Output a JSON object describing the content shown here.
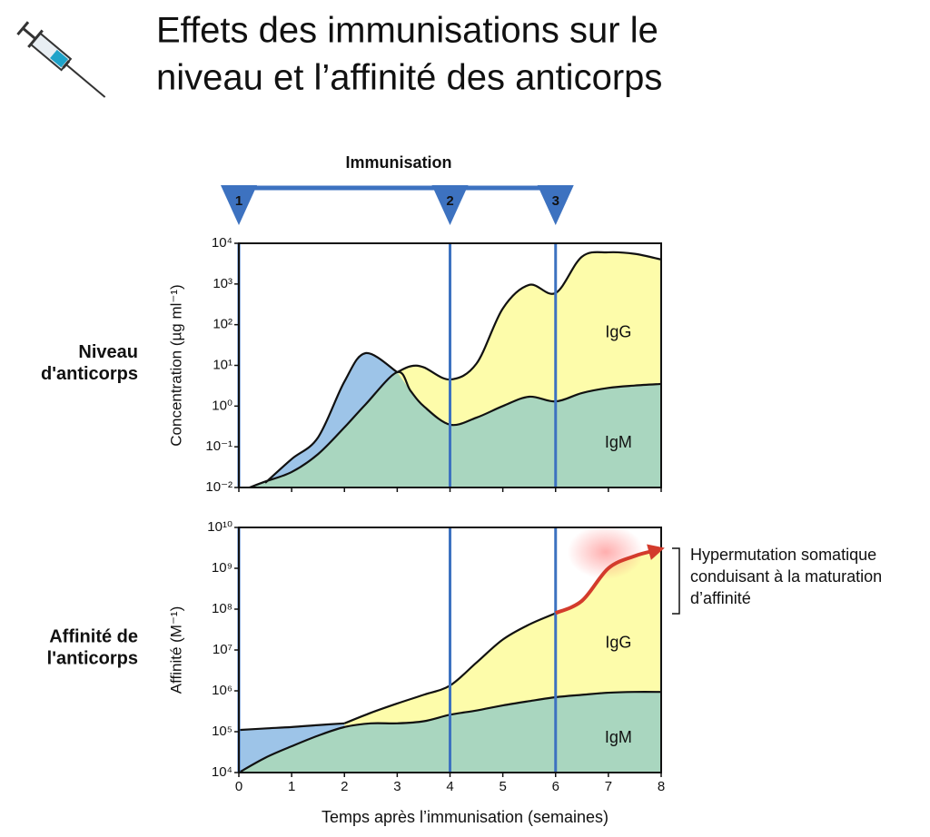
{
  "title": [
    "Effets des immunisations sur le",
    "niveau et l’affinité des anticorps"
  ],
  "immunisation": {
    "label": "Immunisation",
    "color": "#3d72c0",
    "doses": [
      {
        "x": 0,
        "label": "1"
      },
      {
        "x": 4,
        "label": "2"
      },
      {
        "x": 6,
        "label": "3"
      }
    ]
  },
  "chart_data": [
    {
      "type": "area",
      "row_label": [
        "Niveau",
        "d'anticorps"
      ],
      "ylabel": "Concentration (µg ml⁻¹)",
      "log_y": true,
      "xlim": [
        0,
        8
      ],
      "xticks": [
        0,
        1,
        2,
        3,
        4,
        5,
        6,
        7,
        8
      ],
      "xtick_labels": false,
      "ylim": [
        0.01,
        10000
      ],
      "yticks": [
        {
          "value": 0.01,
          "label": "10⁻²"
        },
        {
          "value": 0.1,
          "label": "10⁻¹"
        },
        {
          "value": 1,
          "label": "10⁰"
        },
        {
          "value": 10,
          "label": "10¹"
        },
        {
          "value": 100,
          "label": "10²"
        },
        {
          "value": 1000,
          "label": "10³"
        },
        {
          "value": 10000,
          "label": "10⁴"
        }
      ],
      "x": [
        0.2,
        0.5,
        1,
        1.5,
        2,
        2.4,
        3,
        3.25,
        3.5,
        4,
        4.5,
        5,
        5.5,
        6,
        6.5,
        7,
        7.5,
        8
      ],
      "series": [
        {
          "name": "IgM",
          "color": "#a9d6bf",
          "values": [
            0.01,
            0.014,
            0.024,
            0.066,
            0.3,
            1.1,
            6.8,
            2.4,
            1,
            0.35,
            0.52,
            1,
            1.7,
            1.3,
            2.1,
            2.8,
            3.2,
            3.5
          ]
        },
        {
          "name": "IgG",
          "color": "#fdfcaa",
          "values": [
            null,
            null,
            null,
            null,
            null,
            null,
            6.8,
            9.5,
            9,
            4.5,
            11,
            250,
            950,
            600,
            4700,
            6000,
            5500,
            4000
          ]
        },
        {
          "color": "#9dc4e8",
          "values": [
            null,
            0.013,
            0.05,
            0.17,
            4,
            20,
            6.8,
            null,
            null,
            null,
            null,
            null,
            null,
            null,
            null,
            null,
            null,
            null
          ]
        }
      ]
    },
    {
      "type": "area",
      "row_label": [
        "Affinité de",
        "l'anticorps"
      ],
      "ylabel": "Affinité (M⁻¹)",
      "xlabel": "Temps après l’immunisation (semaines)",
      "log_y": true,
      "xlim": [
        0,
        8
      ],
      "xticks": [
        0,
        1,
        2,
        3,
        4,
        5,
        6,
        7,
        8
      ],
      "xtick_labels": true,
      "ylim": [
        10000,
        10000000000
      ],
      "yticks": [
        {
          "value": 10000,
          "label": "10⁴"
        },
        {
          "value": 100000,
          "label": "10⁵"
        },
        {
          "value": 1000000,
          "label": "10⁶"
        },
        {
          "value": 10000000,
          "label": "10⁷"
        },
        {
          "value": 100000000,
          "label": "10⁸"
        },
        {
          "value": 1000000000,
          "label": "10⁹"
        },
        {
          "value": 10000000000,
          "label": "10¹⁰"
        }
      ],
      "x": [
        0,
        0.5,
        1,
        1.5,
        2,
        2.5,
        3,
        3.5,
        4,
        4.5,
        5,
        5.5,
        6,
        6.5,
        7,
        7.5,
        8
      ],
      "series": [
        {
          "name": "IgM",
          "color": "#a9d6bf",
          "values": [
            10000,
            23000,
            44000,
            80000,
            130000,
            160000,
            160000,
            180000,
            260000,
            330000,
            440000,
            560000,
            700000,
            800000,
            900000,
            940000,
            940000
          ]
        },
        {
          "name": "IgG",
          "color": "#fdfcaa",
          "values": [
            null,
            null,
            null,
            null,
            160000,
            290000,
            490000,
            800000,
            1350000,
            4900000,
            18000000,
            42000000,
            80000000,
            160000000,
            1000000000,
            2000000000,
            3000000000
          ]
        },
        {
          "color": "#9dc4e8",
          "values": [
            110000,
            120000,
            130000,
            145000,
            160000,
            null,
            null,
            null,
            null,
            null,
            null,
            null,
            null,
            null,
            null,
            null,
            null
          ]
        }
      ],
      "annotation": {
        "color": "#d33b2c",
        "lines": [
          "Hypermutation somatique",
          "conduisant à la maturation",
          "d’affinité"
        ]
      }
    }
  ]
}
